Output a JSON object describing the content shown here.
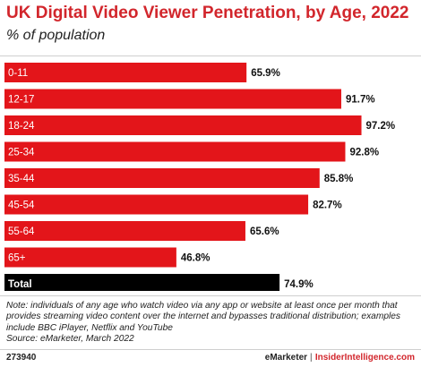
{
  "title": "UK Digital Video Viewer Penetration, by Age, 2022",
  "subtitle": "% of population",
  "chart_data": {
    "type": "bar",
    "orientation": "horizontal",
    "categories": [
      "0-11",
      "12-17",
      "18-24",
      "25-34",
      "35-44",
      "45-54",
      "55-64",
      "65+",
      "Total"
    ],
    "values": [
      65.9,
      91.7,
      97.2,
      92.8,
      85.8,
      82.7,
      65.6,
      46.8,
      74.9
    ],
    "value_labels": [
      "65.9%",
      "91.7%",
      "97.2%",
      "92.8%",
      "85.8%",
      "82.7%",
      "65.6%",
      "46.8%",
      "74.9%"
    ],
    "xlim": [
      0,
      100
    ],
    "colors": {
      "bar": "#e3151a",
      "total_bar": "#000000"
    },
    "grid": false
  },
  "note": "Note: individuals of any age who watch video via any app or website at least once per month that provides streaming video content over the internet and bypasses traditional distribution; examples include BBC iPlayer, Netflix and YouTube",
  "source": "Source: eMarketer, March 2022",
  "footer": {
    "chart_id": "273940",
    "brand": "eMarketer",
    "separator": "|",
    "brand2": "InsiderIntelligence.com"
  }
}
